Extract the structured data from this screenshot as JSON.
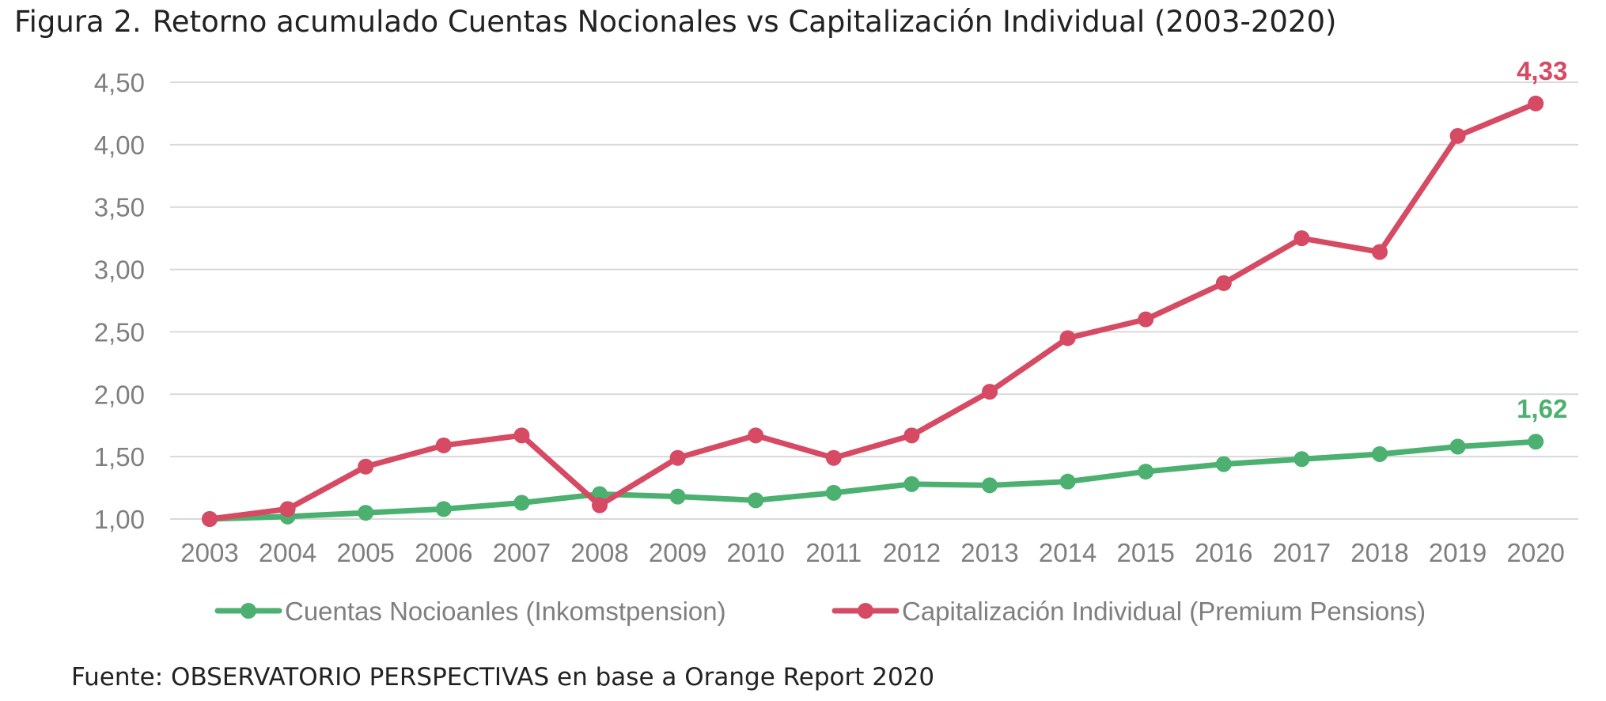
{
  "figure": {
    "label": "Figura 2.",
    "title": "Retorno acumulado Cuentas Nocionales vs Capitalización Individual (2003-2020)"
  },
  "source": {
    "label": "Fuente:",
    "organization": "OBSERVATORIO PERSPECTIVAS",
    "rest": "en base a Orange Report 2020"
  },
  "colors": {
    "nocional": "#4bb070",
    "capitalizacion": "#d64a63",
    "grid": "#d9d9d9",
    "tick": "#7f7f7f"
  },
  "chart_data": {
    "type": "line",
    "title": "Retorno acumulado Cuentas Nocionales vs Capitalización Individual (2003-2020)",
    "xlabel": "",
    "ylabel": "",
    "ylim": [
      1.0,
      4.5
    ],
    "y_ticks": [
      1.0,
      1.5,
      2.0,
      2.5,
      3.0,
      3.5,
      4.0,
      4.5
    ],
    "y_tick_labels": [
      "1,00",
      "1,50",
      "2,00",
      "2,50",
      "3,00",
      "3,50",
      "4,00",
      "4,50"
    ],
    "grid": true,
    "legend_position": "bottom",
    "categories": [
      "2003",
      "2004",
      "2005",
      "2006",
      "2007",
      "2008",
      "2009",
      "2010",
      "2011",
      "2012",
      "2013",
      "2014",
      "2015",
      "2016",
      "2017",
      "2018",
      "2019",
      "2020"
    ],
    "series": [
      {
        "name": "Cuentas Nocioanles (Inkomstpension)",
        "color": "#4bb070",
        "values": [
          1.0,
          1.02,
          1.05,
          1.08,
          1.13,
          1.2,
          1.18,
          1.15,
          1.21,
          1.28,
          1.27,
          1.3,
          1.38,
          1.44,
          1.48,
          1.52,
          1.58,
          1.62
        ],
        "end_label": "1,62"
      },
      {
        "name": "Capitalización Individual (Premium Pensions)",
        "color": "#d64a63",
        "values": [
          1.0,
          1.08,
          1.42,
          1.59,
          1.67,
          1.11,
          1.49,
          1.67,
          1.49,
          1.67,
          2.02,
          2.45,
          2.6,
          2.89,
          3.25,
          3.14,
          4.07,
          4.33
        ],
        "end_label": "4,33"
      }
    ]
  }
}
